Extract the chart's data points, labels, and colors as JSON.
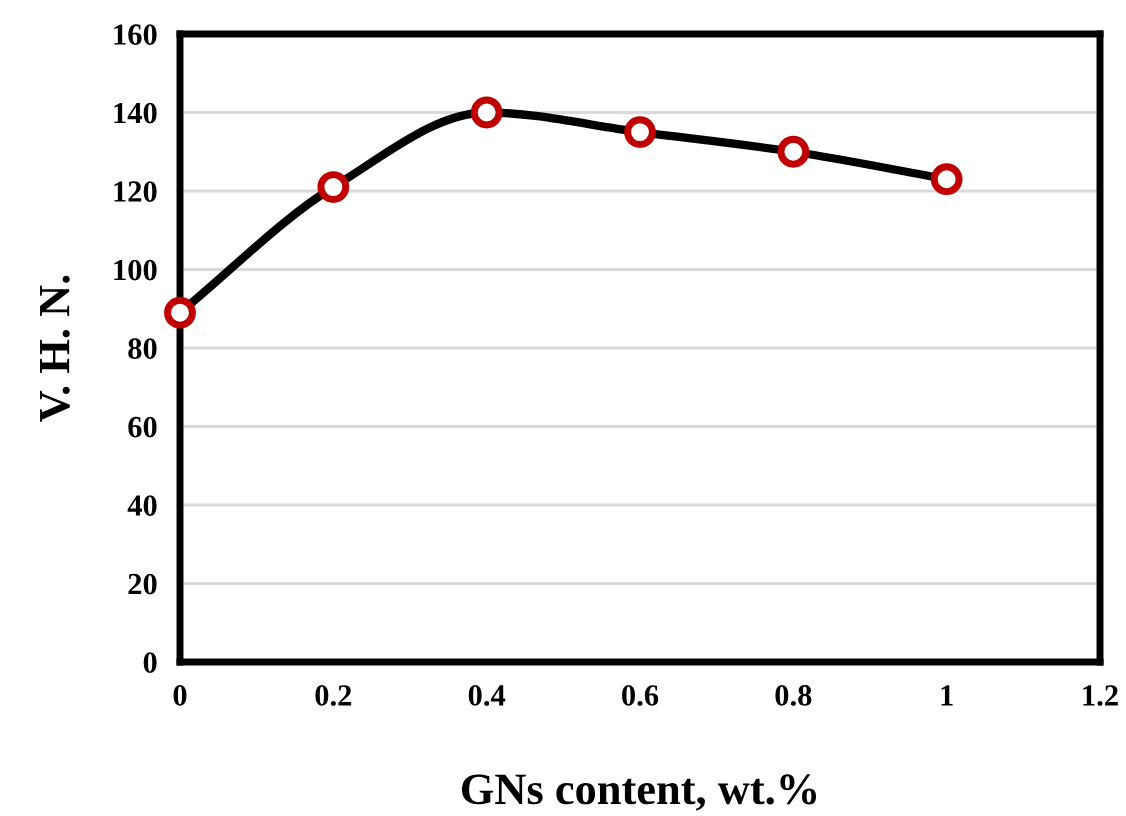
{
  "chart_data": {
    "type": "line",
    "xlabel": "GNs content, wt.%",
    "ylabel": "V. H. N.",
    "x": [
      0,
      0.2,
      0.4,
      0.6,
      0.8,
      1
    ],
    "series": [
      {
        "color": "#000000",
        "colors": [
          "#c00000",
          "#c00000",
          "#c00000",
          "#c00000",
          "#c00000",
          "#c00000"
        ],
        "values": [
          89,
          121,
          140,
          135,
          130,
          123
        ]
      }
    ],
    "xlim": [
      0,
      1.2
    ],
    "xticks": [
      0,
      0.2,
      0.4,
      0.6,
      0.8,
      1,
      1.2
    ],
    "ylim": [
      0,
      160
    ],
    "yticks": [
      0,
      20,
      40,
      60,
      80,
      100,
      120,
      140,
      160
    ],
    "grid": "y",
    "marker": "circle",
    "line_style": "solid",
    "legend": false
  }
}
